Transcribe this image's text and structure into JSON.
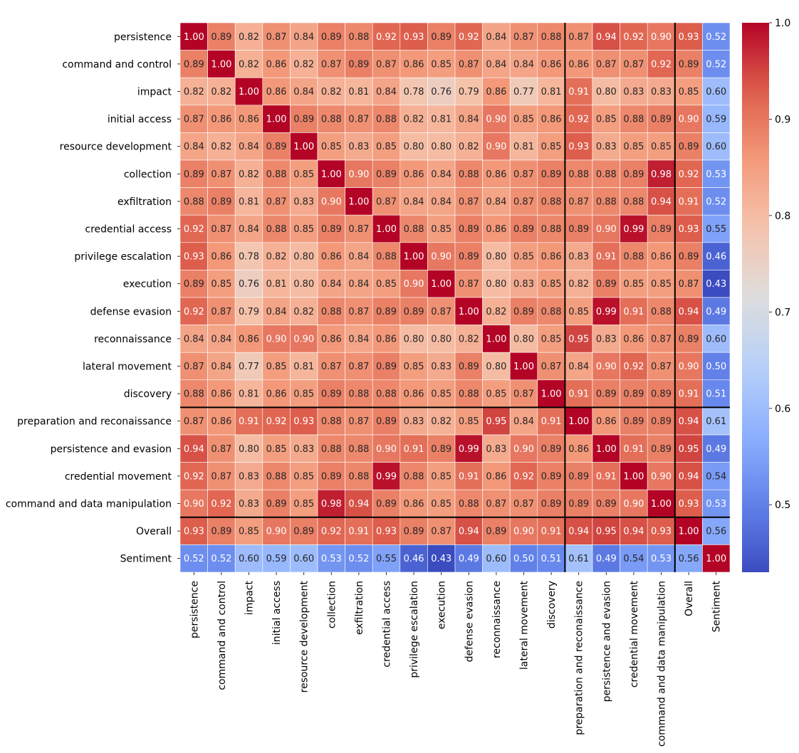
{
  "chart_data": {
    "type": "heatmap",
    "title": "",
    "xlabel": "",
    "ylabel": "",
    "colormap": "coolwarm",
    "value_range": [
      0.43,
      1.0
    ],
    "colorbar": {
      "ticks": [
        0.5,
        0.6,
        0.7,
        0.8,
        0.9,
        1.0
      ],
      "tick_labels": [
        "0.5",
        "0.6",
        "0.7",
        "0.8",
        "0.9",
        "1.0"
      ]
    },
    "group_separators_after": [
      14,
      18
    ],
    "labels": [
      "persistence",
      "command and control",
      "impact",
      "initial access",
      "resource development",
      "collection",
      "exfiltration",
      "credential access",
      "privilege escalation",
      "execution",
      "defense evasion",
      "reconnaissance",
      "lateral movement",
      "discovery",
      "preparation and reconaissance",
      "persistence and evasion",
      "credential movement",
      "command and data manipulation",
      "Overall",
      "Sentiment"
    ],
    "values": [
      [
        1.0,
        0.89,
        0.82,
        0.87,
        0.84,
        0.89,
        0.88,
        0.92,
        0.93,
        0.89,
        0.92,
        0.84,
        0.87,
        0.88,
        0.87,
        0.94,
        0.92,
        0.9,
        0.93,
        0.52
      ],
      [
        0.89,
        1.0,
        0.82,
        0.86,
        0.82,
        0.87,
        0.89,
        0.87,
        0.86,
        0.85,
        0.87,
        0.84,
        0.84,
        0.86,
        0.86,
        0.87,
        0.87,
        0.92,
        0.89,
        0.52
      ],
      [
        0.82,
        0.82,
        1.0,
        0.86,
        0.84,
        0.82,
        0.81,
        0.84,
        0.78,
        0.76,
        0.79,
        0.86,
        0.77,
        0.81,
        0.91,
        0.8,
        0.83,
        0.83,
        0.85,
        0.6
      ],
      [
        0.87,
        0.86,
        0.86,
        1.0,
        0.89,
        0.88,
        0.87,
        0.88,
        0.82,
        0.81,
        0.84,
        0.9,
        0.85,
        0.86,
        0.92,
        0.85,
        0.88,
        0.89,
        0.9,
        0.59
      ],
      [
        0.84,
        0.82,
        0.84,
        0.89,
        1.0,
        0.85,
        0.83,
        0.85,
        0.8,
        0.8,
        0.82,
        0.9,
        0.81,
        0.85,
        0.93,
        0.83,
        0.85,
        0.85,
        0.89,
        0.6
      ],
      [
        0.89,
        0.87,
        0.82,
        0.88,
        0.85,
        1.0,
        0.9,
        0.89,
        0.86,
        0.84,
        0.88,
        0.86,
        0.87,
        0.89,
        0.88,
        0.88,
        0.89,
        0.98,
        0.92,
        0.53
      ],
      [
        0.88,
        0.89,
        0.81,
        0.87,
        0.83,
        0.9,
        1.0,
        0.87,
        0.84,
        0.84,
        0.87,
        0.84,
        0.87,
        0.88,
        0.87,
        0.88,
        0.88,
        0.94,
        0.91,
        0.52
      ],
      [
        0.92,
        0.87,
        0.84,
        0.88,
        0.85,
        0.89,
        0.87,
        1.0,
        0.88,
        0.85,
        0.89,
        0.86,
        0.89,
        0.88,
        0.89,
        0.9,
        0.99,
        0.89,
        0.93,
        0.55
      ],
      [
        0.93,
        0.86,
        0.78,
        0.82,
        0.8,
        0.86,
        0.84,
        0.88,
        1.0,
        0.9,
        0.89,
        0.8,
        0.85,
        0.86,
        0.83,
        0.91,
        0.88,
        0.86,
        0.89,
        0.46
      ],
      [
        0.89,
        0.85,
        0.76,
        0.81,
        0.8,
        0.84,
        0.84,
        0.85,
        0.9,
        1.0,
        0.87,
        0.8,
        0.83,
        0.85,
        0.82,
        0.89,
        0.85,
        0.85,
        0.87,
        0.43
      ],
      [
        0.92,
        0.87,
        0.79,
        0.84,
        0.82,
        0.88,
        0.87,
        0.89,
        0.89,
        0.87,
        1.0,
        0.82,
        0.89,
        0.88,
        0.85,
        0.99,
        0.91,
        0.88,
        0.94,
        0.49
      ],
      [
        0.84,
        0.84,
        0.86,
        0.9,
        0.9,
        0.86,
        0.84,
        0.86,
        0.8,
        0.8,
        0.82,
        1.0,
        0.8,
        0.85,
        0.95,
        0.83,
        0.86,
        0.87,
        0.89,
        0.6
      ],
      [
        0.87,
        0.84,
        0.77,
        0.85,
        0.81,
        0.87,
        0.87,
        0.89,
        0.85,
        0.83,
        0.89,
        0.8,
        1.0,
        0.87,
        0.84,
        0.9,
        0.92,
        0.87,
        0.9,
        0.5
      ],
      [
        0.88,
        0.86,
        0.81,
        0.86,
        0.85,
        0.89,
        0.88,
        0.88,
        0.86,
        0.85,
        0.88,
        0.85,
        0.87,
        1.0,
        0.91,
        0.89,
        0.89,
        0.89,
        0.91,
        0.51
      ],
      [
        0.87,
        0.86,
        0.91,
        0.92,
        0.93,
        0.88,
        0.87,
        0.89,
        0.83,
        0.82,
        0.85,
        0.95,
        0.84,
        0.91,
        1.0,
        0.86,
        0.89,
        0.89,
        0.94,
        0.61
      ],
      [
        0.94,
        0.87,
        0.8,
        0.85,
        0.83,
        0.88,
        0.88,
        0.9,
        0.91,
        0.89,
        0.99,
        0.83,
        0.9,
        0.89,
        0.86,
        1.0,
        0.91,
        0.89,
        0.95,
        0.49
      ],
      [
        0.92,
        0.87,
        0.83,
        0.88,
        0.85,
        0.89,
        0.88,
        0.99,
        0.88,
        0.85,
        0.91,
        0.86,
        0.92,
        0.89,
        0.89,
        0.91,
        1.0,
        0.9,
        0.94,
        0.54
      ],
      [
        0.9,
        0.92,
        0.83,
        0.89,
        0.85,
        0.98,
        0.94,
        0.89,
        0.86,
        0.85,
        0.88,
        0.87,
        0.87,
        0.89,
        0.89,
        0.89,
        0.9,
        1.0,
        0.93,
        0.53
      ],
      [
        0.93,
        0.89,
        0.85,
        0.9,
        0.89,
        0.92,
        0.91,
        0.93,
        0.89,
        0.87,
        0.94,
        0.89,
        0.9,
        0.91,
        0.94,
        0.95,
        0.94,
        0.93,
        1.0,
        0.56
      ],
      [
        0.52,
        0.52,
        0.6,
        0.59,
        0.6,
        0.53,
        0.52,
        0.55,
        0.46,
        0.43,
        0.49,
        0.6,
        0.5,
        0.51,
        0.61,
        0.49,
        0.54,
        0.53,
        0.56,
        1.0
      ]
    ]
  }
}
